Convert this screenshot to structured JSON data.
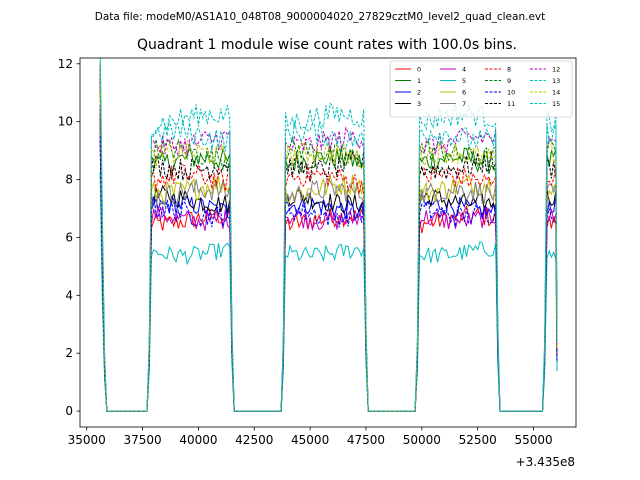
{
  "chart_data": {
    "type": "line",
    "suptitle": "Data file: modeM0/AS1A10_048T08_9000004020_27829cztM0_level2_quad_clean.evt",
    "title": "Quadrant 1 module wise count rates with 100.0s bins.",
    "xlabel": "",
    "ylabel": "",
    "x_offset_label": "+3.435e8",
    "xlim": [
      34700,
      56900
    ],
    "ylim": [
      -0.55,
      12.2
    ],
    "xticks": [
      35000,
      37500,
      40000,
      42500,
      45000,
      47500,
      50000,
      52500,
      55000
    ],
    "yticks": [
      0,
      2,
      4,
      6,
      8,
      10,
      12
    ],
    "legend_position": "upper right",
    "segments": [
      {
        "start": 37800,
        "end": 41400
      },
      {
        "start": 43800,
        "end": 47400
      },
      {
        "start": 49800,
        "end": 53300
      },
      {
        "start": 55500,
        "end": 56000
      }
    ],
    "initial_spike": {
      "x": [
        35700,
        35800,
        35950
      ],
      "level": "~10.5 then decaying to 0"
    },
    "gap_level": 0,
    "series": [
      {
        "name": "0",
        "color": "#ff0000",
        "dash": "solid",
        "mean": 6.6,
        "spread": 0.35
      },
      {
        "name": "1",
        "color": "#008000",
        "dash": "solid",
        "mean": 8.6,
        "spread": 0.4
      },
      {
        "name": "2",
        "color": "#0000ff",
        "dash": "solid",
        "mean": 7.0,
        "spread": 0.35
      },
      {
        "name": "3",
        "color": "#000000",
        "dash": "solid",
        "mean": 7.3,
        "spread": 0.35
      },
      {
        "name": "4",
        "color": "#bf00bf",
        "dash": "solid",
        "mean": 6.7,
        "spread": 0.35
      },
      {
        "name": "5",
        "color": "#00bfbf",
        "dash": "solid",
        "mean": 5.5,
        "spread": 0.3
      },
      {
        "name": "6",
        "color": "#bfbf00",
        "dash": "solid",
        "mean": 7.7,
        "spread": 0.4
      },
      {
        "name": "7",
        "color": "#808080",
        "dash": "solid",
        "mean": 7.5,
        "spread": 0.4
      },
      {
        "name": "8",
        "color": "#ff0000",
        "dash": "dashed",
        "mean": 8.0,
        "spread": 0.4
      },
      {
        "name": "9",
        "color": "#008000",
        "dash": "dashed",
        "mean": 8.9,
        "spread": 0.4
      },
      {
        "name": "10",
        "color": "#0000ff",
        "dash": "dashed",
        "mean": 6.9,
        "spread": 0.4
      },
      {
        "name": "11",
        "color": "#000000",
        "dash": "dashed",
        "mean": 8.5,
        "spread": 0.4
      },
      {
        "name": "12",
        "color": "#bf00bf",
        "dash": "dashed",
        "mean": 9.3,
        "spread": 0.4
      },
      {
        "name": "13",
        "color": "#00bfbf",
        "dash": "dashed",
        "mean": 10.1,
        "spread": 0.4
      },
      {
        "name": "14",
        "color": "#bfbf00",
        "dash": "dashed",
        "mean": 8.8,
        "spread": 0.4
      },
      {
        "name": "15",
        "color": "#00bfbf",
        "dash": "dashed",
        "mean": 9.5,
        "spread": 0.4
      }
    ]
  }
}
